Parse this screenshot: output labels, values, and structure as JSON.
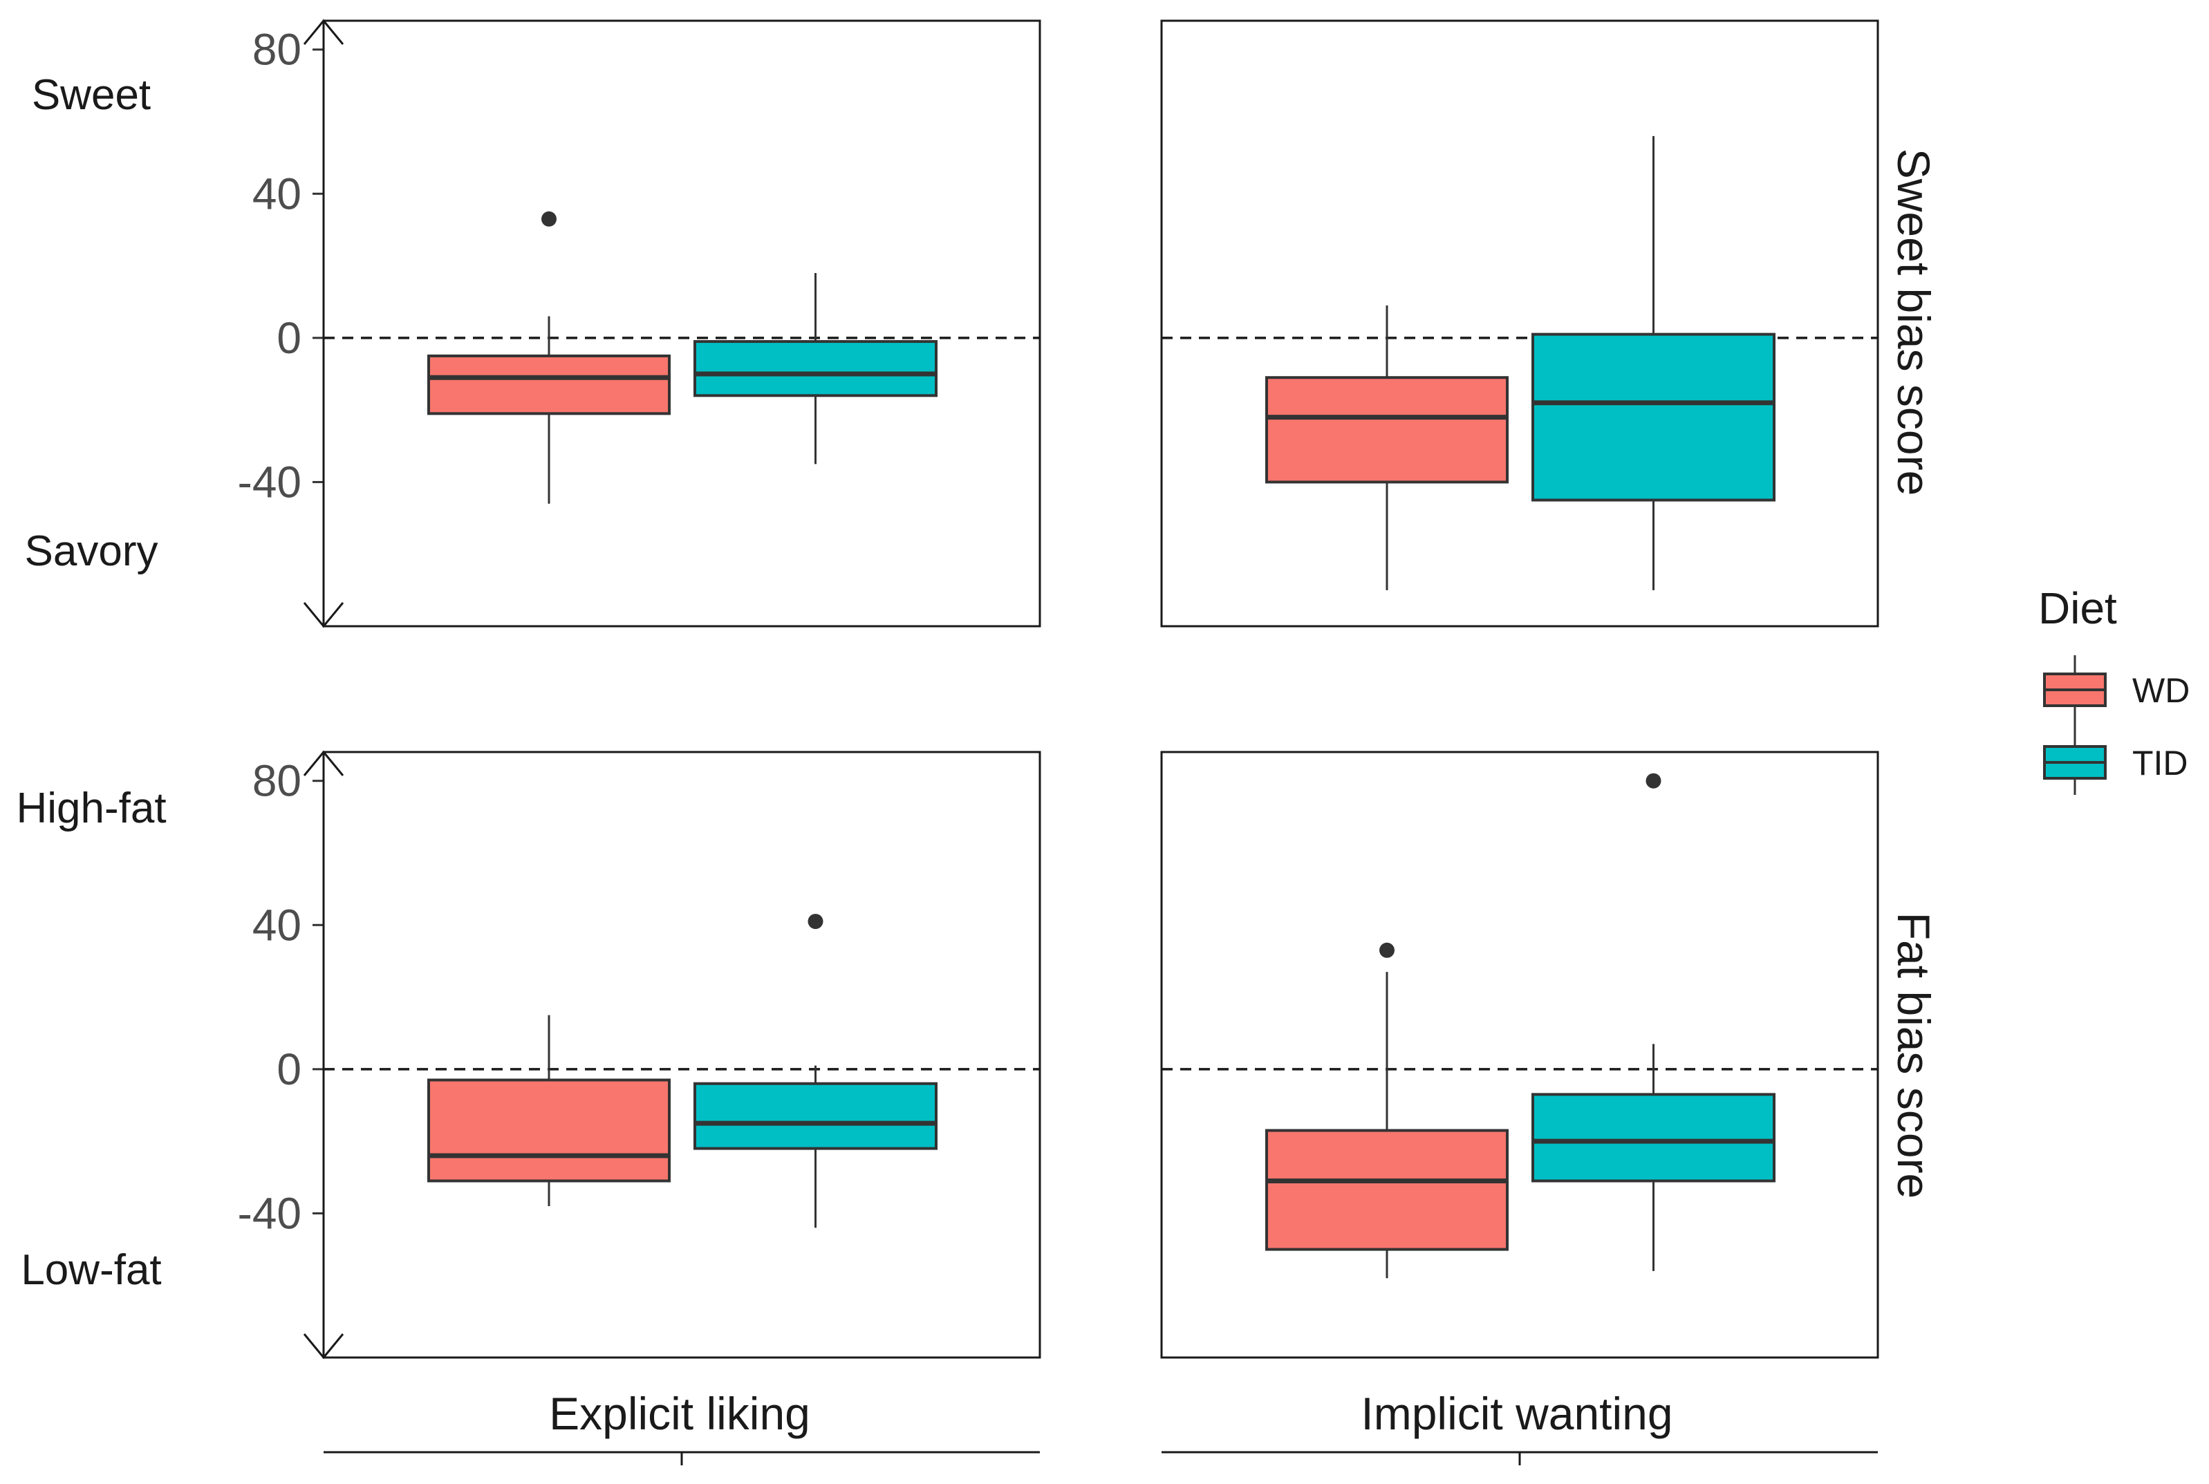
{
  "chart_data": {
    "type": "boxplot",
    "layout": "facet grid: rows = bias type, columns = measure",
    "columns": [
      "Explicit liking",
      "Implicit wanting"
    ],
    "rows": [
      "Sweet bias score",
      "Fat bias score"
    ],
    "y_ticks": [
      80,
      40,
      0,
      -40
    ],
    "ylim": [
      -80,
      88
    ],
    "reference_line": {
      "y": 0,
      "style": "dashed"
    },
    "legend": {
      "title": "Diet",
      "placement": "right",
      "entries": [
        {
          "name": "WD",
          "color": "#F8766D"
        },
        {
          "name": "TID",
          "color": "#00BFC4"
        }
      ]
    },
    "direction_labels": [
      {
        "top": "Sweet",
        "bottom": "Savory"
      },
      {
        "top": "High-fat",
        "bottom": "Low-fat"
      }
    ],
    "panels": [
      {
        "row": 0,
        "col": 0,
        "boxes": [
          {
            "group": "WD",
            "whisker_low": -46,
            "q1": -21,
            "median": -11,
            "q3": -5,
            "whisker_high": 6,
            "outliers": [
              33
            ]
          },
          {
            "group": "TID",
            "whisker_low": -35,
            "q1": -16,
            "median": -10,
            "q3": -1,
            "whisker_high": 18,
            "outliers": []
          }
        ]
      },
      {
        "row": 0,
        "col": 1,
        "boxes": [
          {
            "group": "WD",
            "whisker_low": -70,
            "q1": -40,
            "median": -22,
            "q3": -11,
            "whisker_high": 9,
            "outliers": []
          },
          {
            "group": "TID",
            "whisker_low": -70,
            "q1": -45,
            "median": -18,
            "q3": 1,
            "whisker_high": 56,
            "outliers": []
          }
        ]
      },
      {
        "row": 1,
        "col": 0,
        "boxes": [
          {
            "group": "WD",
            "whisker_low": -38,
            "q1": -31,
            "median": -24,
            "q3": -3,
            "whisker_high": 15,
            "outliers": []
          },
          {
            "group": "TID",
            "whisker_low": -44,
            "q1": -22,
            "median": -15,
            "q3": -4,
            "whisker_high": 1,
            "outliers": [
              41
            ]
          }
        ]
      },
      {
        "row": 1,
        "col": 1,
        "boxes": [
          {
            "group": "WD",
            "whisker_low": -58,
            "q1": -50,
            "median": -31,
            "q3": -17,
            "whisker_high": 27,
            "outliers": [
              33
            ]
          },
          {
            "group": "TID",
            "whisker_low": -56,
            "q1": -31,
            "median": -20,
            "q3": -7,
            "whisker_high": 7,
            "outliers": [
              80
            ]
          }
        ]
      }
    ]
  }
}
